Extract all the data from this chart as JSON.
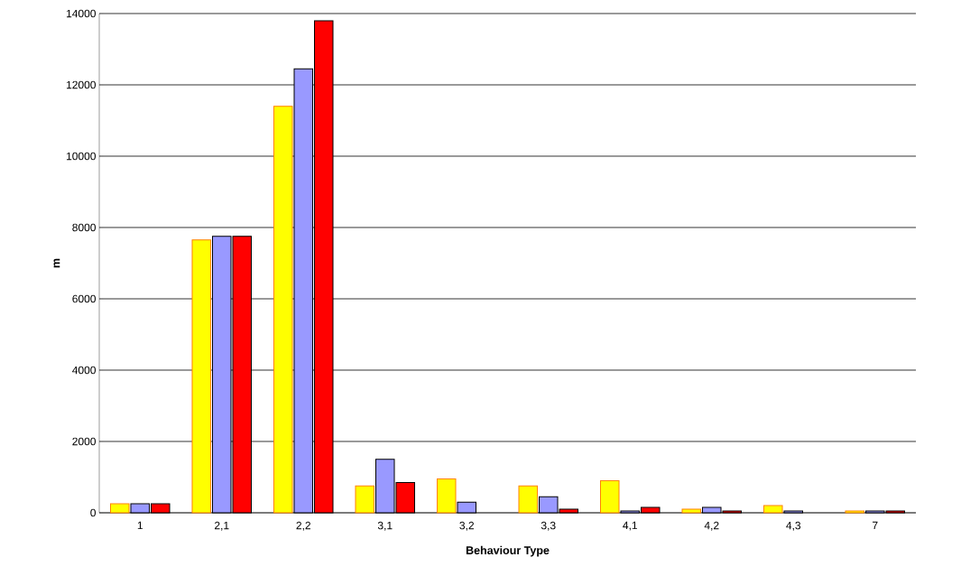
{
  "chart_data": {
    "type": "bar",
    "xlabel": "Behaviour Type",
    "ylabel": "m",
    "categories": [
      "1",
      "2,1",
      "2,2",
      "3,1",
      "3,2",
      "3,3",
      "4,1",
      "4,2",
      "4,3",
      "7"
    ],
    "series": [
      {
        "color": "#ffff00",
        "values": [
          250,
          7650,
          11400,
          750,
          950,
          750,
          900,
          100,
          200,
          50
        ]
      },
      {
        "color": "#9999ff",
        "values": [
          250,
          7750,
          12450,
          1500,
          300,
          450,
          50,
          150,
          50,
          50
        ]
      },
      {
        "color": "#ff0000",
        "values": [
          250,
          7750,
          13800,
          850,
          null,
          100,
          150,
          50,
          null,
          50
        ]
      }
    ],
    "ylim": [
      0,
      14000
    ],
    "yticks": [
      0,
      2000,
      4000,
      6000,
      8000,
      10000,
      12000,
      14000
    ],
    "grid": "y"
  }
}
